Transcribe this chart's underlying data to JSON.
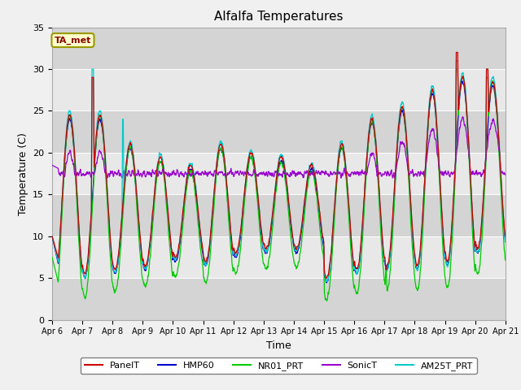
{
  "title": "Alfalfa Temperatures",
  "xlabel": "Time",
  "ylabel": "Temperature (C)",
  "annotation": "TA_met",
  "ylim": [
    0,
    35
  ],
  "yticks": [
    0,
    5,
    10,
    15,
    20,
    25,
    30,
    35
  ],
  "x_tick_labels": [
    "Apr 6",
    "Apr 7",
    "Apr 8",
    "Apr 9",
    "Apr 10",
    "Apr 11",
    "Apr 12",
    "Apr 13",
    "Apr 14",
    "Apr 15",
    "Apr 16",
    "Apr 17",
    "Apr 18",
    "Apr 19",
    "Apr 20",
    "Apr 21"
  ],
  "colors": {
    "PanelT": "#cc0000",
    "HMP60": "#0000cc",
    "NR01_PRT": "#00cc00",
    "SonicT": "#9900cc",
    "AM25T_PRT": "#00cccc"
  },
  "legend_labels": [
    "PanelT",
    "HMP60",
    "NR01_PRT",
    "SonicT",
    "AM25T_PRT"
  ],
  "facecolor_fig": "#f0f0f0",
  "facecolor_axes": "#e8e8e8",
  "grid_color": "#ffffff",
  "title_fontsize": 11,
  "label_fontsize": 9,
  "tick_fontsize": 8,
  "legend_fontsize": 8
}
